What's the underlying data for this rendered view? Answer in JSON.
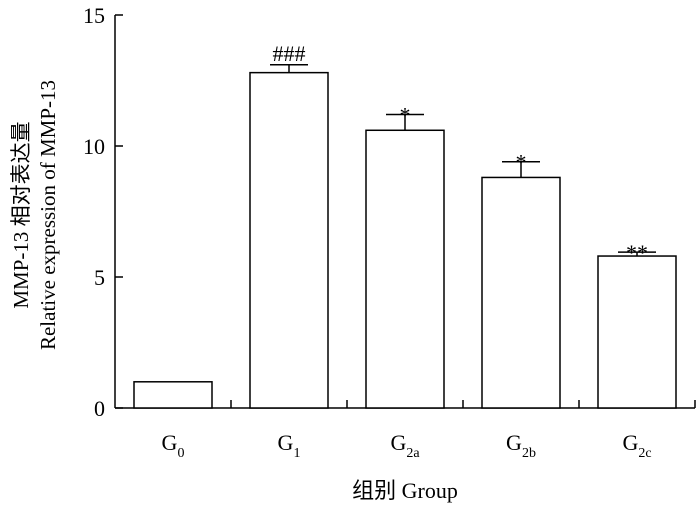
{
  "chart_data": {
    "type": "bar",
    "categories": [
      {
        "base": "G",
        "sub": "0"
      },
      {
        "base": "G",
        "sub": "1"
      },
      {
        "base": "G",
        "sub": "2a"
      },
      {
        "base": "G",
        "sub": "2b"
      },
      {
        "base": "G",
        "sub": "2c"
      }
    ],
    "values": [
      1.0,
      12.8,
      10.6,
      8.8,
      5.8
    ],
    "errors": [
      0,
      0.3,
      0.6,
      0.6,
      0.15
    ],
    "annotations": [
      "",
      "###",
      "*",
      "*",
      "**"
    ],
    "ylabel_line1": "MMP-13 相对表达量",
    "ylabel_line2": "Relative expression of MMP-13",
    "xlabel": "组别  Group",
    "ylim": [
      0,
      15
    ],
    "yticks": [
      0,
      5,
      10,
      15
    ],
    "bar_color": "#ffffff",
    "edge_color": "#000000"
  }
}
